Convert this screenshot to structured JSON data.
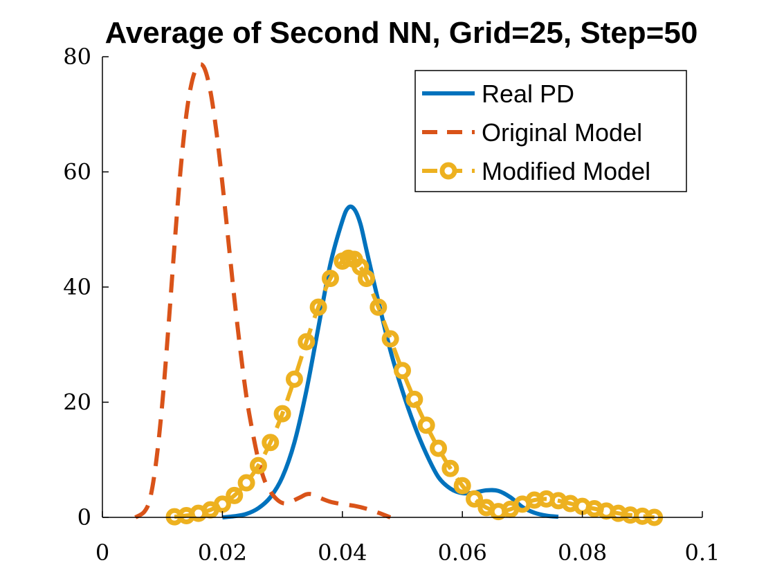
{
  "chart_data": {
    "type": "line",
    "title": "Average of Second NN, Grid=25, Step=50",
    "xlabel": "",
    "ylabel": "",
    "xlim": [
      0,
      0.1
    ],
    "ylim": [
      0,
      80
    ],
    "x_ticks": [
      0,
      0.02,
      0.04,
      0.06,
      0.08,
      0.1
    ],
    "x_tick_labels": [
      "0",
      "0.02",
      "0.04",
      "0.06",
      "0.08",
      "0.1"
    ],
    "y_ticks": [
      0,
      20,
      40,
      60,
      80
    ],
    "y_tick_labels": [
      "0",
      "20",
      "40",
      "60",
      "80"
    ],
    "grid": false,
    "legend_position": "top-right",
    "series": [
      {
        "name": "Real PD",
        "style": "solid",
        "color": "#0072BD",
        "x": [
          0.02,
          0.022,
          0.024,
          0.026,
          0.028,
          0.03,
          0.032,
          0.034,
          0.036,
          0.038,
          0.04,
          0.041,
          0.042,
          0.043,
          0.044,
          0.046,
          0.048,
          0.05,
          0.052,
          0.054,
          0.056,
          0.058,
          0.06,
          0.062,
          0.064,
          0.066,
          0.068,
          0.07,
          0.072,
          0.074,
          0.076
        ],
        "y": [
          0.0,
          0.2,
          0.6,
          1.6,
          3.5,
          7.0,
          13.0,
          22.0,
          33.0,
          44.0,
          51.5,
          53.8,
          53.5,
          51.0,
          46.5,
          37.5,
          29.0,
          22.0,
          16.0,
          11.0,
          7.0,
          5.0,
          4.2,
          4.3,
          4.7,
          4.6,
          3.5,
          1.8,
          0.8,
          0.3,
          0.1
        ]
      },
      {
        "name": "Original Model",
        "style": "dashed",
        "color": "#D95319",
        "x": [
          0.0055,
          0.007,
          0.008,
          0.009,
          0.01,
          0.011,
          0.012,
          0.013,
          0.014,
          0.015,
          0.016,
          0.017,
          0.018,
          0.019,
          0.02,
          0.021,
          0.022,
          0.023,
          0.024,
          0.025,
          0.026,
          0.027,
          0.028,
          0.029,
          0.03,
          0.031,
          0.032,
          0.033,
          0.034,
          0.035,
          0.036,
          0.038,
          0.04,
          0.042,
          0.044,
          0.046,
          0.048
        ],
        "y": [
          0.0,
          1.0,
          3.5,
          10.0,
          20.0,
          33.0,
          47.0,
          60.0,
          70.0,
          76.0,
          78.5,
          78.0,
          74.0,
          67.0,
          58.0,
          48.0,
          38.0,
          29.0,
          21.0,
          15.0,
          10.0,
          6.5,
          4.5,
          3.2,
          2.5,
          2.5,
          3.0,
          3.5,
          4.0,
          4.0,
          3.5,
          2.7,
          2.3,
          2.0,
          1.5,
          0.8,
          0.0
        ]
      },
      {
        "name": "Modified Model",
        "style": "dash-circle",
        "color": "#EDB120",
        "x": [
          0.012,
          0.014,
          0.016,
          0.018,
          0.02,
          0.022,
          0.024,
          0.026,
          0.028,
          0.03,
          0.032,
          0.034,
          0.036,
          0.038,
          0.04,
          0.041,
          0.042,
          0.043,
          0.044,
          0.046,
          0.048,
          0.05,
          0.052,
          0.054,
          0.056,
          0.058,
          0.06,
          0.062,
          0.064,
          0.066,
          0.068,
          0.07,
          0.072,
          0.074,
          0.076,
          0.078,
          0.08,
          0.082,
          0.084,
          0.086,
          0.088,
          0.09,
          0.092
        ],
        "y": [
          0.1,
          0.3,
          0.7,
          1.3,
          2.3,
          3.8,
          6.0,
          9.0,
          13.0,
          18.0,
          24.0,
          30.5,
          36.5,
          41.5,
          44.5,
          45.0,
          44.8,
          43.5,
          41.5,
          36.5,
          31.0,
          25.5,
          20.5,
          16.0,
          12.0,
          8.5,
          5.5,
          3.2,
          1.7,
          1.0,
          1.4,
          2.3,
          3.0,
          3.2,
          2.9,
          2.4,
          1.9,
          1.5,
          1.1,
          0.7,
          0.4,
          0.2,
          0.0
        ]
      }
    ]
  }
}
